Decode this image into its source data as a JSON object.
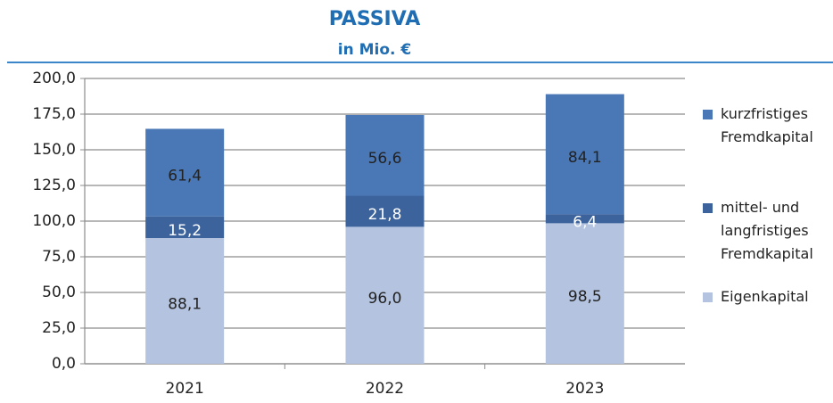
{
  "chart_data": {
    "type": "stacked_bar",
    "title": "PASSIVA",
    "subtitle": "in Mio. €",
    "categories": [
      "2021",
      "2022",
      "2023"
    ],
    "series": [
      {
        "name": "Eigenkapital",
        "color": "#b4c3e0",
        "label_color": "#222222",
        "values": [
          88.1,
          96.0,
          98.5
        ],
        "value_labels": [
          "88,1",
          "96,0",
          "98,5"
        ]
      },
      {
        "name": "mittel- und langfristiges Fremdkapital",
        "color": "#3d639d",
        "label_color": "#ffffff",
        "values": [
          15.2,
          21.8,
          6.4
        ],
        "value_labels": [
          "15,2",
          "21,8",
          "6,4"
        ]
      },
      {
        "name": "kurzfristiges Fremdkapital",
        "color": "#4a78b6",
        "label_color": "#222222",
        "values": [
          61.4,
          56.6,
          84.1
        ],
        "value_labels": [
          "61,4",
          "56,6",
          "84,1"
        ]
      }
    ],
    "ylim": [
      0,
      200
    ],
    "yticks": [
      {
        "value": 0,
        "label": "0,0"
      },
      {
        "value": 25,
        "label": "25,0"
      },
      {
        "value": 50,
        "label": "50,0"
      },
      {
        "value": 75,
        "label": "75,0"
      },
      {
        "value": 100,
        "label": "100,0"
      },
      {
        "value": 125,
        "label": "125,0"
      },
      {
        "value": 150,
        "label": "150,0"
      },
      {
        "value": 175,
        "label": "175,0"
      },
      {
        "value": 200,
        "label": "200,0"
      }
    ],
    "grid": true,
    "legend": "right"
  }
}
